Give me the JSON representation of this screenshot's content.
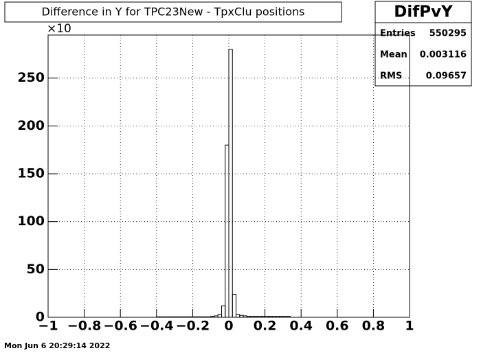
{
  "chart_data": {
    "type": "histogram",
    "title": "Difference in Y  for TPC23New - TpxClu positions",
    "y_multiplier": "×10",
    "stats": {
      "name": "DifPvY",
      "rows": [
        [
          "Entries",
          "550295"
        ],
        [
          "Mean",
          "0.003116"
        ],
        [
          "RMS",
          "0.09657"
        ]
      ]
    },
    "footer": "Mon Jun  6 20:29:14 2022",
    "bins": [
      -1,
      -0.98,
      -0.96,
      -0.94,
      -0.92,
      -0.9,
      -0.88,
      -0.86,
      -0.84,
      -0.82,
      -0.8,
      -0.78,
      -0.76,
      -0.74,
      -0.72,
      -0.7,
      -0.68,
      -0.66,
      -0.64,
      -0.62,
      -0.6,
      -0.58,
      -0.56,
      -0.54,
      -0.52,
      -0.5,
      -0.48,
      -0.46,
      -0.44,
      -0.42,
      -0.4,
      -0.38,
      -0.36,
      -0.34,
      -0.32,
      -0.3,
      -0.28,
      -0.26,
      -0.24,
      -0.22,
      -0.2,
      -0.18,
      -0.16,
      -0.14,
      -0.12,
      -0.1,
      -0.08,
      -0.06,
      -0.04,
      -0.02,
      0,
      0.02,
      0.04,
      0.06,
      0.08,
      0.1,
      0.12,
      0.14,
      0.16,
      0.18,
      0.2,
      0.22,
      0.24,
      0.26,
      0.28,
      0.3,
      0.32,
      0.34,
      0.36,
      0.38,
      0.4,
      0.42,
      0.44,
      0.46,
      0.48,
      0.5,
      0.52,
      0.54,
      0.56,
      0.58,
      0.6,
      0.62,
      0.64,
      0.66,
      0.68,
      0.7,
      0.72,
      0.74,
      0.76,
      0.78,
      0.8,
      0.82,
      0.84,
      0.86,
      0.88,
      0.9,
      0.92,
      0.94,
      0.96,
      0.98,
      1
    ],
    "values": [
      0,
      0,
      0,
      0,
      0,
      0,
      0,
      0,
      0,
      0,
      0,
      0,
      0,
      0,
      0,
      0,
      0,
      0,
      0,
      0,
      0,
      0,
      0,
      0,
      0,
      0,
      0,
      0,
      0,
      0,
      0.5,
      0.5,
      0.5,
      0.5,
      0.5,
      0.5,
      0.5,
      0.5,
      0.5,
      0.5,
      0.5,
      0.5,
      0.5,
      0.5,
      0.5,
      1,
      1.5,
      3,
      12,
      180,
      280,
      24,
      3,
      2,
      1.5,
      1,
      1,
      1,
      1,
      1,
      1,
      1,
      1,
      1,
      1,
      1,
      1,
      0,
      0,
      0,
      0,
      0,
      0,
      0,
      0,
      0,
      0,
      0,
      0,
      0,
      0,
      0,
      0,
      0,
      0,
      0,
      0,
      0,
      0,
      0,
      0,
      0,
      0,
      0,
      0,
      0,
      0,
      0,
      0,
      0
    ],
    "color": "#000000",
    "xlim": [
      -1,
      1
    ],
    "xticks": [
      {
        "value": -1,
        "label": "−1"
      },
      {
        "value": -0.8,
        "label": "−0.8"
      },
      {
        "value": -0.6,
        "label": "−0.6"
      },
      {
        "value": -0.4,
        "label": "−0.4"
      },
      {
        "value": -0.2,
        "label": "−0.2"
      },
      0,
      0.2,
      0.4,
      0.6,
      0.8,
      1
    ],
    "ylim": [
      0,
      295
    ],
    "yticks": [
      0,
      50,
      100,
      150,
      200,
      250
    ],
    "grid": true
  }
}
